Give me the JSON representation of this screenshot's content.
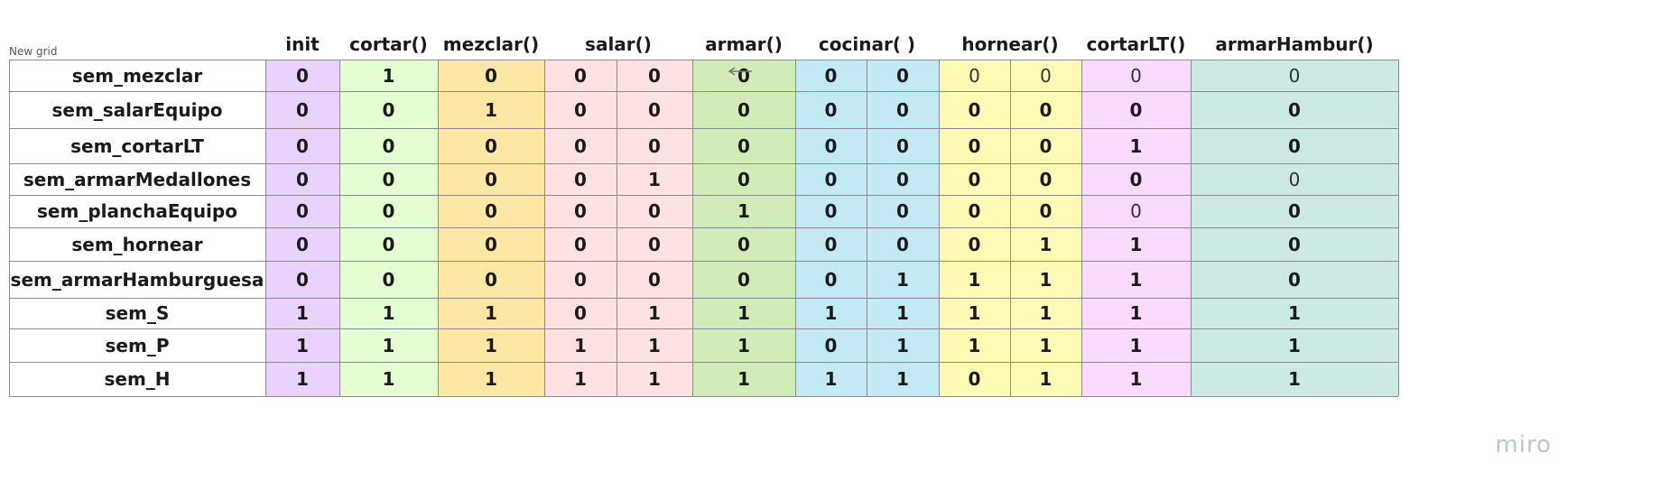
{
  "board": {
    "title": "New grid",
    "watermark": "miro"
  },
  "columns": [
    {
      "label": "init",
      "span": 1,
      "color": "#e9d3fe"
    },
    {
      "label": "cortar()",
      "span": 1,
      "color": "#e4fcd1"
    },
    {
      "label": "mezclar()",
      "span": 1,
      "color": "#fde7a5"
    },
    {
      "label": "salar()",
      "span": 2,
      "color": "#fde1e3"
    },
    {
      "label": "armar()",
      "span": 1,
      "color": "#d1ecb9"
    },
    {
      "label": "cocinar( )",
      "span": 2,
      "color": "#c3e9f4"
    },
    {
      "label": "hornear()",
      "span": 2,
      "color": "#fcfab5"
    },
    {
      "label": "cortarLT()",
      "span": 1,
      "color": "#fbdbfd"
    },
    {
      "label": "armarHambur()",
      "span": 1,
      "color": "#cce9e4"
    }
  ],
  "rows": [
    {
      "label": "sem_mezclar",
      "values": [
        "0",
        "1",
        "0",
        "0",
        "0",
        "0",
        "0",
        "0",
        "0",
        "0",
        "0",
        "0"
      ],
      "light": [
        8,
        9,
        10,
        11
      ]
    },
    {
      "label": "sem_salarEquipo",
      "values": [
        "0",
        "0",
        "1",
        "0",
        "0",
        "0",
        "0",
        "0",
        "0",
        "0",
        "0",
        "0"
      ],
      "light": []
    },
    {
      "label": "sem_cortarLT",
      "values": [
        "0",
        "0",
        "0",
        "0",
        "0",
        "0",
        "0",
        "0",
        "0",
        "0",
        "1",
        "0"
      ],
      "light": []
    },
    {
      "label": "sem_armarMedallones",
      "values": [
        "0",
        "0",
        "0",
        "0",
        "1",
        "0",
        "0",
        "0",
        "0",
        "0",
        "0",
        "0"
      ],
      "light": [
        11
      ]
    },
    {
      "label": "sem_planchaEquipo",
      "values": [
        "0",
        "0",
        "0",
        "0",
        "0",
        "1",
        "0",
        "0",
        "0",
        "0",
        "0",
        "0"
      ],
      "light": [
        10
      ]
    },
    {
      "label": "sem_hornear",
      "values": [
        "0",
        "0",
        "0",
        "0",
        "0",
        "0",
        "0",
        "0",
        "0",
        "1",
        "1",
        "0"
      ],
      "light": []
    },
    {
      "label": "sem_armarHamburguesa",
      "values": [
        "0",
        "0",
        "0",
        "0",
        "0",
        "0",
        "0",
        "1",
        "1",
        "1",
        "1",
        "0"
      ],
      "light": []
    },
    {
      "label": "sem_S",
      "values": [
        "1",
        "1",
        "1",
        "0",
        "1",
        "1",
        "1",
        "1",
        "1",
        "1",
        "1",
        "1"
      ],
      "light": []
    },
    {
      "label": "sem_P",
      "values": [
        "1",
        "1",
        "1",
        "1",
        "1",
        "1",
        "0",
        "1",
        "1",
        "1",
        "1",
        "1"
      ],
      "light": []
    },
    {
      "label": "sem_H",
      "values": [
        "1",
        "1",
        "1",
        "1",
        "1",
        "1",
        "1",
        "1",
        "0",
        "1",
        "1",
        "1"
      ],
      "light": []
    }
  ]
}
